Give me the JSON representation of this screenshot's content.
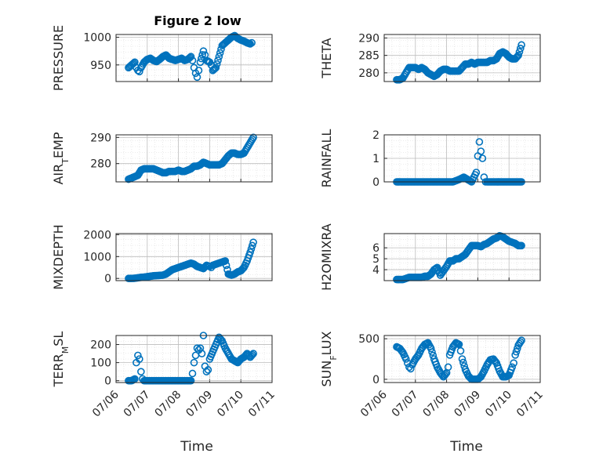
{
  "figure_title": "Figure 2 low",
  "chart_data": [
    {
      "type": "scatter",
      "ylabel": "PRESSURE",
      "ylim": [
        920,
        1005
      ],
      "yticks": [
        950,
        1000
      ],
      "xlim": [
        "07/06",
        "07/11"
      ],
      "xticks": [
        "07/06",
        "07/07",
        "07/08",
        "07/09",
        "07/10",
        "07/11"
      ],
      "grid": "major and minor",
      "x": [
        6.4,
        6.5,
        6.6,
        6.65,
        6.7,
        6.75,
        6.8,
        6.9,
        7.0,
        7.1,
        7.2,
        7.3,
        7.4,
        7.5,
        7.6,
        7.7,
        7.8,
        7.9,
        8.0,
        8.1,
        8.2,
        8.3,
        8.4,
        8.45,
        8.5,
        8.55,
        8.6,
        8.65,
        8.7,
        8.8,
        8.85,
        8.9,
        9.0,
        9.05,
        9.1,
        9.2,
        9.3,
        9.4,
        9.5,
        9.6,
        9.7,
        9.8,
        9.9,
        10.0,
        10.1,
        10.2,
        10.3,
        10.35
      ],
      "y": [
        945,
        950,
        955,
        945,
        940,
        938,
        945,
        955,
        960,
        962,
        958,
        956,
        960,
        965,
        968,
        962,
        960,
        958,
        960,
        962,
        958,
        960,
        965,
        958,
        945,
        935,
        928,
        940,
        955,
        975,
        968,
        958,
        955,
        950,
        940,
        945,
        965,
        985,
        990,
        995,
        1000,
        1003,
        998,
        995,
        993,
        990,
        988,
        990
      ]
    },
    {
      "type": "scatter",
      "ylabel": "THETA",
      "ylim": [
        277.5,
        291
      ],
      "yticks": [
        280,
        285,
        290
      ],
      "xlim": [
        "07/06",
        "07/11"
      ],
      "xticks": [
        "07/06",
        "07/07",
        "07/08",
        "07/09",
        "07/10",
        "07/11"
      ],
      "grid": "major and minor",
      "x": [
        6.4,
        6.5,
        6.6,
        6.7,
        6.8,
        6.9,
        7.0,
        7.1,
        7.2,
        7.3,
        7.4,
        7.5,
        7.6,
        7.7,
        7.8,
        7.9,
        8.0,
        8.1,
        8.2,
        8.3,
        8.4,
        8.5,
        8.6,
        8.7,
        8.8,
        8.9,
        9.0,
        9.1,
        9.2,
        9.3,
        9.4,
        9.5,
        9.6,
        9.7,
        9.8,
        9.9,
        10.0,
        10.1,
        10.2,
        10.3,
        10.4
      ],
      "y": [
        278,
        278,
        278.5,
        280,
        281.5,
        281.5,
        281.5,
        281,
        281.5,
        281,
        280,
        279.5,
        279,
        279.5,
        280.5,
        281,
        281,
        280.5,
        280.5,
        280.5,
        280.5,
        281.5,
        282.5,
        282.5,
        283,
        282.5,
        283,
        283,
        283,
        283,
        283.5,
        283.5,
        284,
        285.5,
        286,
        285.5,
        284.5,
        284,
        284,
        285,
        288
      ]
    },
    {
      "type": "scatter",
      "ylabel": "AIR_TEMP",
      "ylim": [
        273,
        291
      ],
      "yticks": [
        280,
        290
      ],
      "xlim": [
        "07/06",
        "07/11"
      ],
      "xticks": [
        "07/06",
        "07/07",
        "07/08",
        "07/09",
        "07/10",
        "07/11"
      ],
      "grid": "major and minor",
      "x": [
        6.4,
        6.5,
        6.6,
        6.7,
        6.8,
        6.9,
        7.0,
        7.1,
        7.2,
        7.3,
        7.4,
        7.5,
        7.6,
        7.7,
        7.8,
        7.9,
        8.0,
        8.1,
        8.2,
        8.3,
        8.4,
        8.5,
        8.6,
        8.7,
        8.8,
        8.9,
        9.0,
        9.1,
        9.2,
        9.3,
        9.4,
        9.5,
        9.6,
        9.7,
        9.8,
        9.9,
        10.0,
        10.1,
        10.2,
        10.3,
        10.4
      ],
      "y": [
        274,
        274.5,
        275,
        275.5,
        277.5,
        278,
        278,
        278,
        278,
        277.5,
        277,
        276.5,
        276.5,
        277,
        277,
        277,
        277.5,
        277,
        277,
        277.5,
        278,
        279,
        279,
        279.5,
        280.5,
        280,
        279.5,
        279.5,
        279.5,
        279.5,
        280,
        281.5,
        283,
        284,
        284,
        283.5,
        283.5,
        284,
        286,
        288,
        290
      ]
    },
    {
      "type": "scatter",
      "ylabel": "RAINFALL",
      "ylim": [
        0,
        2
      ],
      "yticks": [
        0,
        1,
        2
      ],
      "xlim": [
        "07/06",
        "07/11"
      ],
      "xticks": [
        "07/06",
        "07/07",
        "07/08",
        "07/09",
        "07/10",
        "07/11"
      ],
      "grid": "major and minor",
      "x": [
        6.4,
        6.6,
        6.8,
        7.0,
        7.2,
        7.4,
        7.6,
        7.8,
        8.0,
        8.2,
        8.4,
        8.55,
        8.8,
        8.95,
        9.0,
        9.05,
        9.1,
        9.15,
        9.2,
        9.25,
        9.3,
        9.5,
        9.7,
        9.9,
        10.1,
        10.3,
        10.4
      ],
      "y": [
        0,
        0,
        0,
        0,
        0,
        0,
        0,
        0,
        0,
        0,
        0.1,
        0.2,
        0,
        0.4,
        1.1,
        1.7,
        1.3,
        1.0,
        0.2,
        0,
        0,
        0,
        0,
        0,
        0,
        0,
        0
      ]
    },
    {
      "type": "scatter",
      "ylabel": "MIXDEPTH",
      "ylim": [
        -100,
        2050
      ],
      "yticks": [
        0,
        1000,
        2000
      ],
      "xlim": [
        "07/06",
        "07/11"
      ],
      "xticks": [
        "07/06",
        "07/07",
        "07/08",
        "07/09",
        "07/10",
        "07/11"
      ],
      "grid": "major and minor",
      "x": [
        6.4,
        6.5,
        6.6,
        6.7,
        6.8,
        6.9,
        7.0,
        7.1,
        7.2,
        7.3,
        7.4,
        7.5,
        7.6,
        7.7,
        7.8,
        7.9,
        8.0,
        8.1,
        8.2,
        8.3,
        8.4,
        8.5,
        8.6,
        8.7,
        8.8,
        8.9,
        9.0,
        9.05,
        9.1,
        9.2,
        9.3,
        9.4,
        9.5,
        9.6,
        9.7,
        9.8,
        9.9,
        10.0,
        10.1,
        10.2,
        10.3,
        10.4
      ],
      "y": [
        0,
        0,
        10,
        30,
        50,
        60,
        80,
        100,
        120,
        130,
        140,
        150,
        200,
        300,
        400,
        450,
        500,
        550,
        600,
        650,
        700,
        650,
        550,
        500,
        450,
        600,
        550,
        500,
        600,
        650,
        700,
        750,
        800,
        200,
        150,
        200,
        300,
        350,
        500,
        800,
        1200,
        1650
      ]
    },
    {
      "type": "scatter",
      "ylabel": "H2OMIXRA",
      "ylim": [
        3,
        7.3
      ],
      "yticks": [
        4,
        5,
        6
      ],
      "xlim": [
        "07/06",
        "07/11"
      ],
      "xticks": [
        "07/06",
        "07/07",
        "07/08",
        "07/09",
        "07/10",
        "07/11"
      ],
      "grid": "major and minor",
      "x": [
        6.4,
        6.5,
        6.6,
        6.7,
        6.8,
        6.9,
        7.0,
        7.1,
        7.2,
        7.3,
        7.4,
        7.5,
        7.6,
        7.7,
        7.8,
        7.9,
        8.0,
        8.1,
        8.2,
        8.3,
        8.4,
        8.5,
        8.6,
        8.7,
        8.8,
        8.9,
        9.0,
        9.1,
        9.2,
        9.3,
        9.4,
        9.5,
        9.6,
        9.7,
        9.8,
        9.9,
        10.0,
        10.1,
        10.2,
        10.3,
        10.4
      ],
      "y": [
        3.1,
        3.1,
        3.1,
        3.2,
        3.3,
        3.3,
        3.3,
        3.3,
        3.3,
        3.4,
        3.4,
        3.6,
        4.0,
        4.2,
        3.5,
        3.9,
        4.3,
        4.8,
        4.8,
        5.0,
        5.0,
        5.2,
        5.4,
        5.8,
        6.2,
        6.2,
        6.2,
        6.1,
        6.3,
        6.4,
        6.6,
        6.8,
        6.9,
        7.1,
        7.0,
        6.8,
        6.6,
        6.5,
        6.4,
        6.2,
        6.2
      ]
    },
    {
      "type": "scatter",
      "ylabel": "TERR_MSL",
      "ylim": [
        -10,
        250
      ],
      "yticks": [
        0,
        100,
        200
      ],
      "xlim": [
        "07/06",
        "07/11"
      ],
      "xticks": [
        "07/06",
        "07/07",
        "07/08",
        "07/09",
        "07/10",
        "07/11"
      ],
      "grid": "major and minor",
      "x": [
        6.4,
        6.5,
        6.6,
        6.65,
        6.7,
        6.75,
        6.8,
        6.85,
        6.9,
        7.0,
        7.2,
        7.4,
        7.6,
        7.8,
        8.0,
        8.2,
        8.3,
        8.4,
        8.45,
        8.5,
        8.55,
        8.6,
        8.65,
        8.7,
        8.75,
        8.8,
        8.85,
        8.9,
        8.95,
        9.0,
        9.1,
        9.2,
        9.3,
        9.4,
        9.5,
        9.6,
        9.7,
        9.8,
        9.9,
        10.0,
        10.1,
        10.2,
        10.3,
        10.4
      ],
      "y": [
        0,
        0,
        10,
        100,
        140,
        120,
        50,
        10,
        0,
        0,
        0,
        0,
        0,
        0,
        0,
        0,
        0,
        0,
        40,
        100,
        140,
        180,
        170,
        180,
        150,
        250,
        80,
        50,
        60,
        120,
        160,
        200,
        240,
        220,
        180,
        150,
        120,
        110,
        100,
        120,
        130,
        150,
        130,
        150
      ]
    },
    {
      "type": "scatter",
      "ylabel": "SUN_FLUX",
      "ylim": [
        -40,
        540
      ],
      "yticks": [
        0,
        500
      ],
      "xlim": [
        "07/06",
        "07/11"
      ],
      "xticks": [
        "07/06",
        "07/07",
        "07/08",
        "07/09",
        "07/10",
        "07/11"
      ],
      "grid": "major and minor",
      "x": [
        6.4,
        6.5,
        6.6,
        6.7,
        6.75,
        6.8,
        6.85,
        6.9,
        7.0,
        7.1,
        7.2,
        7.3,
        7.4,
        7.5,
        7.6,
        7.7,
        7.8,
        7.9,
        8.0,
        8.05,
        8.1,
        8.2,
        8.3,
        8.4,
        8.45,
        8.5,
        8.6,
        8.7,
        8.8,
        8.9,
        9.0,
        9.1,
        9.2,
        9.3,
        9.4,
        9.5,
        9.6,
        9.7,
        9.8,
        9.9,
        10.0,
        10.1,
        10.15,
        10.2,
        10.3,
        10.4
      ],
      "y": [
        400,
        380,
        330,
        250,
        200,
        150,
        130,
        180,
        250,
        300,
        380,
        430,
        450,
        380,
        250,
        150,
        80,
        30,
        80,
        150,
        300,
        400,
        450,
        430,
        350,
        250,
        120,
        40,
        0,
        0,
        0,
        30,
        100,
        180,
        240,
        250,
        200,
        100,
        30,
        30,
        50,
        150,
        200,
        300,
        420,
        480
      ]
    }
  ]
}
